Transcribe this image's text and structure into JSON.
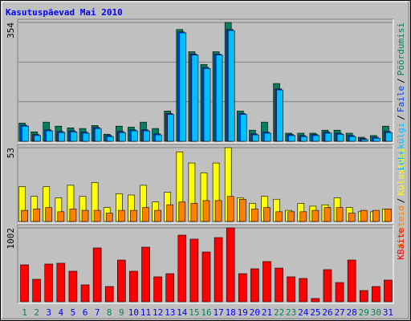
{
  "chart_data": [
    {
      "type": "bar",
      "title": "Kasutuspäevad Mai 2010",
      "ylim": [
        0,
        354
      ],
      "yticks": [
        354
      ],
      "legend_separator": "/",
      "series": [
        {
          "name": "Pöördumisi",
          "color": "#00805c",
          "values": [
            54,
            28,
            57,
            45,
            40,
            38,
            47,
            21,
            45,
            42,
            57,
            38,
            90,
            333,
            267,
            229,
            267,
            354,
            90,
            33,
            57,
            172,
            24,
            24,
            24,
            33,
            33,
            24,
            12,
            17,
            45
          ]
        },
        {
          "name": "Faile",
          "color": "#0040ff",
          "values": [
            48,
            20,
            34,
            29,
            31,
            27,
            41,
            17,
            29,
            34,
            34,
            22,
            83,
            326,
            260,
            220,
            260,
            333,
            83,
            22,
            27,
            156,
            20,
            17,
            20,
            27,
            24,
            17,
            8,
            12,
            29
          ]
        },
        {
          "name": "Lehekülgi",
          "color": "#00c0ff",
          "values": [
            45,
            17,
            31,
            26,
            28,
            24,
            38,
            14,
            26,
            31,
            31,
            19,
            80,
            323,
            257,
            217,
            257,
            330,
            80,
            19,
            24,
            153,
            17,
            14,
            17,
            24,
            21,
            14,
            5,
            9,
            26
          ]
        }
      ]
    },
    {
      "type": "bar",
      "ylim": [
        0,
        53
      ],
      "yticks": [
        53
      ],
      "legend_separator": "/",
      "series": [
        {
          "name": "Külastusi",
          "color": "#ffff00",
          "values": [
            25,
            18,
            25,
            17,
            26,
            18,
            28,
            10,
            20,
            19,
            26,
            14,
            21,
            50,
            42,
            35,
            42,
            53,
            17,
            13,
            18,
            16,
            8,
            13,
            11,
            12,
            17,
            10,
            7,
            7,
            9
          ]
        },
        {
          "name": "Arvuteid",
          "color": "#ff8000",
          "values": [
            8,
            9,
            10,
            7,
            9,
            8,
            8,
            6,
            8,
            8,
            10,
            8,
            12,
            14,
            13,
            15,
            15,
            18,
            16,
            9,
            10,
            7,
            7,
            7,
            8,
            10,
            10,
            6,
            8,
            8,
            9
          ]
        }
      ]
    },
    {
      "type": "bar",
      "ylim": [
        0,
        1002
      ],
      "yticks": [
        1002
      ],
      "categories": [
        "1",
        "2",
        "3",
        "4",
        "5",
        "6",
        "7",
        "8",
        "9",
        "10",
        "11",
        "12",
        "13",
        "14",
        "15",
        "16",
        "17",
        "18",
        "19",
        "20",
        "21",
        "22",
        "23",
        "24",
        "25",
        "26",
        "27",
        "28",
        "29",
        "30",
        "31"
      ],
      "category_colors": [
        "#00805c",
        "#00805c",
        "#0000ff",
        "#0000ff",
        "#0000ff",
        "#0000ff",
        "#0000ff",
        "#00805c",
        "#00805c",
        "#0000ff",
        "#0000ff",
        "#0000ff",
        "#0000ff",
        "#0000ff",
        "#00805c",
        "#00805c",
        "#0000ff",
        "#0000ff",
        "#0000ff",
        "#0000ff",
        "#0000ff",
        "#00805c",
        "#00805c",
        "#0000ff",
        "#0000ff",
        "#0000ff",
        "#0000ff",
        "#0000ff",
        "#00805c",
        "#00805c",
        "#0000ff"
      ],
      "series": [
        {
          "name": "KBaite",
          "color": "#ff0000",
          "values": [
            501,
            305,
            512,
            523,
            414,
            229,
            730,
            207,
            566,
            414,
            741,
            338,
            381,
            904,
            850,
            675,
            871,
            1002,
            381,
            447,
            545,
            457,
            338,
            316,
            44,
            436,
            261,
            566,
            152,
            207,
            294
          ]
        }
      ]
    }
  ]
}
